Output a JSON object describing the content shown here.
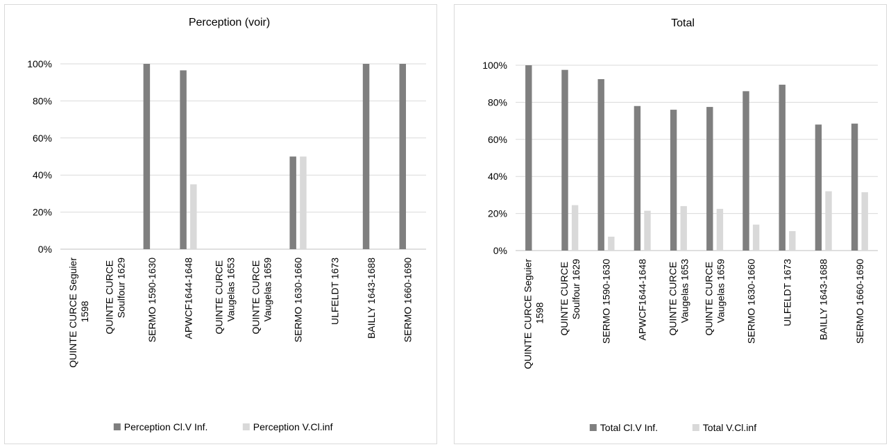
{
  "chart_data": [
    {
      "type": "bar",
      "title": "Perception (voir)",
      "categories": [
        [
          "QUINTE CURCE Seguier",
          "1598"
        ],
        [
          "QUINTE CURCE",
          "Soulfour 1629"
        ],
        [
          "SERMO 1590-1630"
        ],
        [
          "APWCF1644-1648"
        ],
        [
          "QUINTE CURCE",
          "Vaugelas 1653"
        ],
        [
          "QUINTE CURCE",
          "Vaugelas 1659"
        ],
        [
          "SERMO 1630-1660"
        ],
        [
          "ULFELDT 1673"
        ],
        [
          "BAILLY 1643-1688"
        ],
        [
          "SERMO 1660-1690"
        ]
      ],
      "series": [
        {
          "name": "Perception Cl.V Inf.",
          "color": "#7f7f7f",
          "values": [
            0,
            0,
            100,
            96.5,
            0,
            0,
            50,
            0,
            100,
            100
          ]
        },
        {
          "name": "Perception V.Cl.inf",
          "color": "#d9d9d9",
          "values": [
            0,
            0,
            0,
            35,
            0,
            0,
            50,
            0,
            0,
            0
          ]
        }
      ],
      "yticks": [
        "0%",
        "20%",
        "40%",
        "60%",
        "80%",
        "100%"
      ],
      "ylim": [
        0,
        100
      ],
      "grid": true,
      "legend": "bottom"
    },
    {
      "type": "bar",
      "title": "Total",
      "categories": [
        [
          "QUINTE CURCE Seguier",
          "1598"
        ],
        [
          "QUINTE CURCE",
          "Soulfour 1629"
        ],
        [
          "SERMO 1590-1630"
        ],
        [
          "APWCF1644-1648"
        ],
        [
          "QUINTE CURCE",
          "Vaugelas 1653"
        ],
        [
          "QUINTE CURCE",
          "Vaugelas 1659"
        ],
        [
          "SERMO 1630-1660"
        ],
        [
          "ULFELDT 1673"
        ],
        [
          "BAILLY 1643-1688"
        ],
        [
          "SERMO 1660-1690"
        ]
      ],
      "series": [
        {
          "name": "Total Cl.V Inf.",
          "color": "#7f7f7f",
          "values": [
            100,
            97.5,
            92.5,
            78,
            76,
            77.5,
            86,
            89.5,
            68,
            68.5
          ]
        },
        {
          "name": "Total V.Cl.inf",
          "color": "#d9d9d9",
          "values": [
            0,
            24.5,
            7.5,
            21.5,
            24,
            22.5,
            14,
            10.5,
            32,
            31.5
          ]
        }
      ],
      "yticks": [
        "0%",
        "20%",
        "40%",
        "60%",
        "80%",
        "100%"
      ],
      "ylim": [
        0,
        100
      ],
      "grid": true,
      "legend": "bottom"
    }
  ]
}
